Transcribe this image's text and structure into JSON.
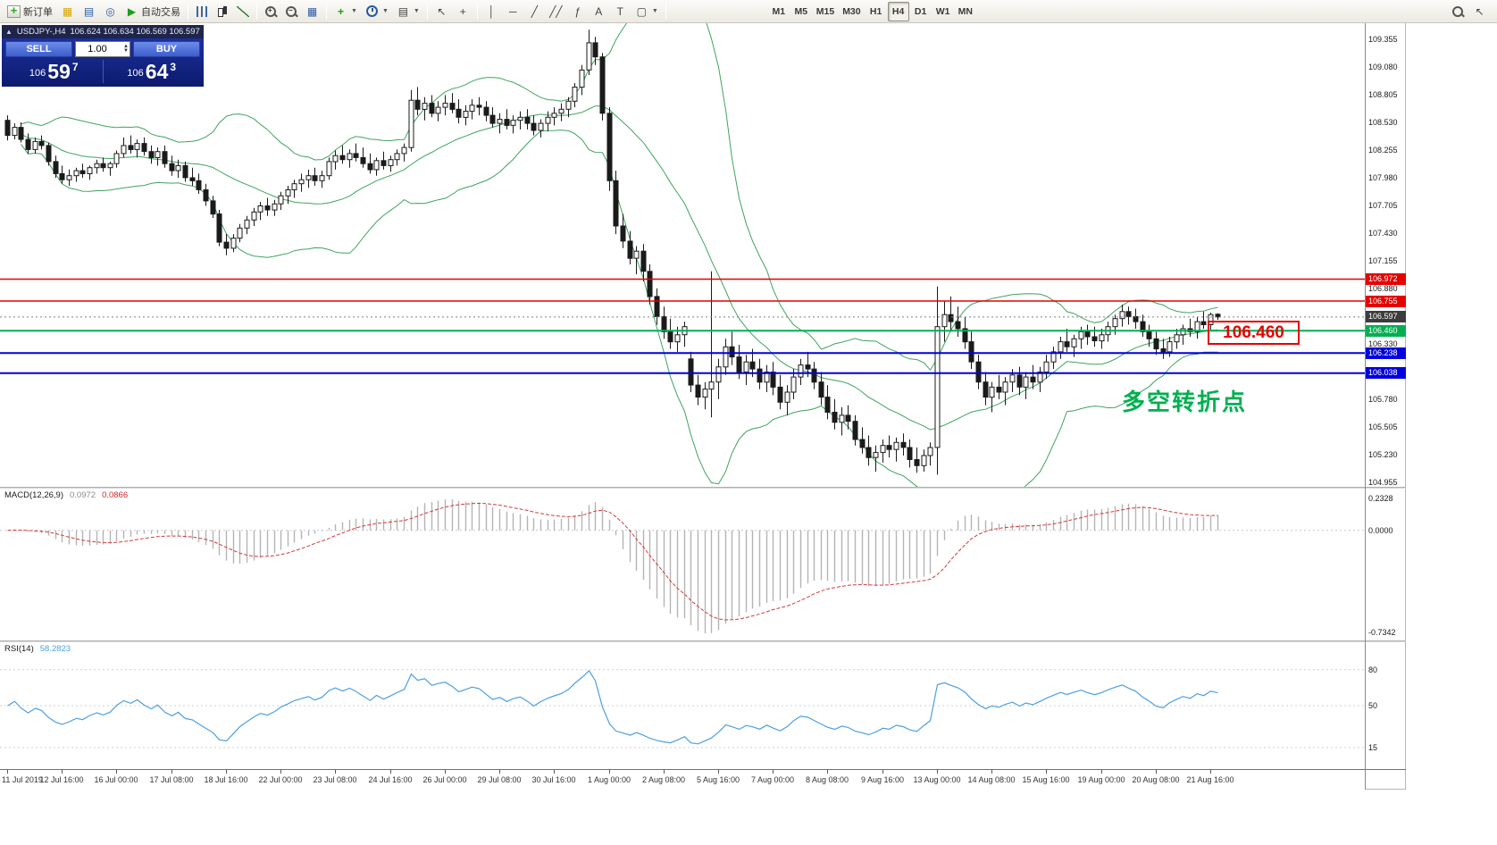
{
  "toolbar": {
    "new_order": "新订单",
    "autotrading": "自动交易",
    "timeframes": [
      "M1",
      "M5",
      "M15",
      "M30",
      "H1",
      "H4",
      "D1",
      "W1",
      "MN"
    ],
    "active_timeframe": "H4"
  },
  "chart": {
    "title_symbol": "USDJPY-,H4",
    "title_ohlc": "106.624 106.634 106.569 106.597",
    "trade_panel": {
      "sell_label": "SELL",
      "buy_label": "BUY",
      "volume": "1.00",
      "sell_price": {
        "prefix": "106",
        "big": "59",
        "sup": "7"
      },
      "buy_price": {
        "prefix": "106",
        "big": "64",
        "sup": "3"
      }
    },
    "price_axis": [
      "109.355",
      "109.080",
      "108.805",
      "108.530",
      "108.255",
      "107.980",
      "107.705",
      "107.430",
      "107.155",
      "106.880",
      "106.605",
      "106.330",
      "106.055",
      "105.780",
      "105.505",
      "105.230",
      "104.955"
    ],
    "current_price": "106.597",
    "current_tag_color": "#3c3c3c",
    "levels": [
      {
        "price": 106.972,
        "label": "106.972",
        "color": "#e60000",
        "width": 1.5
      },
      {
        "price": 106.755,
        "label": "106.755",
        "color": "#e60000",
        "width": 1.5
      },
      {
        "price": 106.46,
        "label": "106.460",
        "color": "#00b050",
        "width": 2
      },
      {
        "price": 106.238,
        "label": "106.238",
        "color": "#0000e0",
        "width": 2
      },
      {
        "price": 106.038,
        "label": "106.038",
        "color": "#0000e0",
        "width": 2
      }
    ],
    "annotations": {
      "price_box": "106.460",
      "note": "多空转折点"
    },
    "time_axis": [
      "11 Jul 2019",
      "12 Jul 16:00",
      "16 Jul 00:00",
      "17 Jul 08:00",
      "18 Jul 16:00",
      "22 Jul 00:00",
      "23 Jul 08:00",
      "24 Jul 16:00",
      "26 Jul 00:00",
      "29 Jul 08:00",
      "30 Jul 16:00",
      "1 Aug 00:00",
      "2 Aug 08:00",
      "5 Aug 16:00",
      "7 Aug 00:00",
      "8 Aug 08:00",
      "9 Aug 16:00",
      "13 Aug 00:00",
      "14 Aug 08:00",
      "15 Aug 16:00",
      "19 Aug 00:00",
      "20 Aug 08:00",
      "21 Aug 16:00"
    ]
  },
  "macd": {
    "label": "MACD(12,26,9)",
    "value_main": "0.0972",
    "value_signal": "0.0866",
    "axis": [
      "0.2328",
      "0.0000",
      "-0.7342"
    ],
    "params": [
      12,
      26,
      9
    ]
  },
  "rsi": {
    "label": "RSI(14)",
    "value": "58.2823",
    "axis": [
      "80",
      "50",
      "15"
    ],
    "levels": [
      80,
      50,
      15
    ],
    "period": 14
  },
  "chart_data": {
    "type": "candlestick",
    "symbol": "USDJPY-",
    "timeframe": "H4",
    "bollinger": {
      "period": 20,
      "deviation": 2
    },
    "colors": {
      "bull": "#ffffff",
      "bear": "#1a1a1a",
      "bollinger": "#3fa45f",
      "macd_hist": "#b4b4b4",
      "macd_signal": "#d23a3a",
      "rsi": "#4d9fe0",
      "level_red": "#e60000",
      "level_green": "#00b050",
      "level_blue": "#0000e0"
    },
    "candles": [
      [
        108.55,
        108.6,
        108.35,
        108.4
      ],
      [
        108.4,
        108.52,
        108.36,
        108.48
      ],
      [
        108.48,
        108.53,
        108.33,
        108.36
      ],
      [
        108.36,
        108.42,
        108.22,
        108.26
      ],
      [
        108.26,
        108.38,
        108.22,
        108.34
      ],
      [
        108.34,
        108.4,
        108.26,
        108.3
      ],
      [
        108.3,
        108.33,
        108.1,
        108.14
      ],
      [
        108.14,
        108.2,
        107.98,
        108.02
      ],
      [
        108.02,
        108.1,
        107.92,
        107.96
      ],
      [
        107.96,
        108.06,
        107.9,
        108.0
      ],
      [
        108.0,
        108.08,
        107.94,
        108.05
      ],
      [
        108.05,
        108.12,
        107.98,
        108.02
      ],
      [
        108.02,
        108.1,
        107.96,
        108.08
      ],
      [
        108.08,
        108.16,
        108.02,
        108.12
      ],
      [
        108.12,
        108.18,
        108.04,
        108.08
      ],
      [
        108.08,
        108.14,
        108.0,
        108.12
      ],
      [
        108.12,
        108.25,
        108.08,
        108.22
      ],
      [
        108.22,
        108.38,
        108.18,
        108.3
      ],
      [
        108.3,
        108.4,
        108.22,
        108.26
      ],
      [
        108.26,
        108.36,
        108.18,
        108.32
      ],
      [
        108.32,
        108.38,
        108.2,
        108.24
      ],
      [
        108.24,
        108.3,
        108.12,
        108.18
      ],
      [
        108.18,
        108.28,
        108.1,
        108.24
      ],
      [
        108.24,
        108.3,
        108.08,
        108.12
      ],
      [
        108.12,
        108.2,
        108.0,
        108.05
      ],
      [
        108.05,
        108.16,
        107.98,
        108.1
      ],
      [
        108.1,
        108.14,
        107.94,
        107.98
      ],
      [
        107.98,
        108.08,
        107.9,
        107.95
      ],
      [
        107.95,
        108.02,
        107.82,
        107.86
      ],
      [
        107.86,
        107.92,
        107.7,
        107.75
      ],
      [
        107.75,
        107.8,
        107.58,
        107.62
      ],
      [
        107.62,
        107.66,
        107.3,
        107.34
      ],
      [
        107.34,
        107.42,
        107.21,
        107.28
      ],
      [
        107.28,
        107.42,
        107.24,
        107.38
      ],
      [
        107.38,
        107.52,
        107.34,
        107.48
      ],
      [
        107.48,
        107.6,
        107.42,
        107.56
      ],
      [
        107.56,
        107.68,
        107.5,
        107.64
      ],
      [
        107.64,
        107.74,
        107.56,
        107.7
      ],
      [
        107.7,
        107.78,
        107.6,
        107.66
      ],
      [
        107.66,
        107.76,
        107.6,
        107.72
      ],
      [
        107.72,
        107.84,
        107.66,
        107.8
      ],
      [
        107.8,
        107.9,
        107.72,
        107.86
      ],
      [
        107.86,
        107.96,
        107.78,
        107.92
      ],
      [
        107.92,
        108.02,
        107.84,
        107.96
      ],
      [
        107.96,
        108.06,
        107.88,
        108.0
      ],
      [
        108.0,
        108.08,
        107.9,
        107.95
      ],
      [
        107.95,
        108.05,
        107.88,
        108.0
      ],
      [
        108.0,
        108.18,
        107.96,
        108.14
      ],
      [
        108.14,
        108.25,
        108.06,
        108.2
      ],
      [
        108.2,
        108.3,
        108.12,
        108.16
      ],
      [
        108.16,
        108.26,
        108.08,
        108.22
      ],
      [
        108.22,
        108.32,
        108.14,
        108.18
      ],
      [
        108.18,
        108.28,
        108.08,
        108.12
      ],
      [
        108.12,
        108.22,
        108.02,
        108.06
      ],
      [
        108.06,
        108.18,
        108.0,
        108.15
      ],
      [
        108.15,
        108.24,
        108.06,
        108.1
      ],
      [
        108.1,
        108.2,
        108.04,
        108.16
      ],
      [
        108.16,
        108.26,
        108.1,
        108.22
      ],
      [
        108.22,
        108.32,
        108.14,
        108.28
      ],
      [
        108.28,
        108.85,
        108.24,
        108.75
      ],
      [
        108.75,
        108.88,
        108.6,
        108.66
      ],
      [
        108.66,
        108.78,
        108.55,
        108.72
      ],
      [
        108.72,
        108.8,
        108.58,
        108.62
      ],
      [
        108.62,
        108.74,
        108.54,
        108.68
      ],
      [
        108.68,
        108.8,
        108.6,
        108.72
      ],
      [
        108.72,
        108.82,
        108.62,
        108.66
      ],
      [
        108.66,
        108.76,
        108.52,
        108.58
      ],
      [
        108.58,
        108.7,
        108.5,
        108.64
      ],
      [
        108.64,
        108.76,
        108.56,
        108.7
      ],
      [
        108.7,
        108.78,
        108.6,
        108.68
      ],
      [
        108.68,
        108.74,
        108.54,
        108.6
      ],
      [
        108.6,
        108.68,
        108.48,
        108.52
      ],
      [
        108.52,
        108.62,
        108.42,
        108.56
      ],
      [
        108.56,
        108.66,
        108.46,
        108.5
      ],
      [
        108.5,
        108.6,
        108.42,
        108.55
      ],
      [
        108.55,
        108.64,
        108.46,
        108.58
      ],
      [
        108.58,
        108.66,
        108.46,
        108.52
      ],
      [
        108.52,
        108.6,
        108.4,
        108.45
      ],
      [
        108.45,
        108.56,
        108.38,
        108.52
      ],
      [
        108.52,
        108.64,
        108.44,
        108.58
      ],
      [
        108.58,
        108.68,
        108.5,
        108.62
      ],
      [
        108.62,
        108.72,
        108.54,
        108.66
      ],
      [
        108.66,
        108.78,
        108.58,
        108.74
      ],
      [
        108.74,
        108.92,
        108.68,
        108.88
      ],
      [
        108.88,
        109.1,
        108.8,
        109.05
      ],
      [
        109.05,
        109.45,
        109.0,
        109.32
      ],
      [
        109.32,
        109.38,
        109.1,
        109.18
      ],
      [
        109.18,
        109.22,
        108.55,
        108.62
      ],
      [
        108.62,
        108.68,
        107.85,
        107.95
      ],
      [
        107.95,
        108.05,
        107.42,
        107.5
      ],
      [
        107.5,
        107.62,
        107.28,
        107.35
      ],
      [
        107.35,
        107.45,
        107.12,
        107.18
      ],
      [
        107.18,
        107.3,
        107.02,
        107.25
      ],
      [
        107.25,
        107.32,
        106.95,
        107.05
      ],
      [
        107.05,
        107.12,
        106.72,
        106.8
      ],
      [
        106.8,
        106.88,
        106.52,
        106.6
      ],
      [
        106.6,
        106.7,
        106.38,
        106.45
      ],
      [
        106.45,
        106.58,
        106.28,
        106.35
      ],
      [
        106.35,
        106.5,
        106.25,
        106.42
      ],
      [
        106.42,
        106.55,
        106.3,
        106.5
      ],
      [
        106.18,
        106.25,
        105.85,
        105.92
      ],
      [
        105.92,
        106.02,
        105.72,
        105.8
      ],
      [
        105.8,
        105.95,
        105.68,
        105.88
      ],
      [
        105.88,
        107.05,
        105.6,
        105.95
      ],
      [
        105.95,
        106.18,
        105.78,
        106.1
      ],
      [
        106.1,
        106.38,
        106.02,
        106.3
      ],
      [
        106.3,
        106.45,
        106.12,
        106.2
      ],
      [
        106.2,
        106.32,
        105.98,
        106.05
      ],
      [
        106.05,
        106.22,
        105.92,
        106.15
      ],
      [
        106.15,
        106.28,
        106.0,
        106.08
      ],
      [
        106.08,
        106.18,
        105.88,
        105.95
      ],
      [
        105.95,
        106.12,
        105.85,
        106.05
      ],
      [
        106.05,
        106.15,
        105.82,
        105.9
      ],
      [
        105.9,
        106.02,
        105.68,
        105.75
      ],
      [
        105.75,
        105.92,
        105.62,
        105.85
      ],
      [
        105.85,
        106.08,
        105.78,
        106.0
      ],
      [
        106.0,
        106.18,
        105.92,
        106.12
      ],
      [
        106.12,
        106.25,
        106.0,
        106.08
      ],
      [
        106.08,
        106.15,
        105.88,
        105.95
      ],
      [
        105.95,
        106.05,
        105.72,
        105.8
      ],
      [
        105.8,
        105.92,
        105.58,
        105.65
      ],
      [
        105.65,
        105.78,
        105.48,
        105.55
      ],
      [
        105.55,
        105.7,
        105.42,
        105.62
      ],
      [
        105.62,
        105.72,
        105.48,
        105.56
      ],
      [
        105.56,
        105.62,
        105.32,
        105.38
      ],
      [
        105.38,
        105.5,
        105.24,
        105.3
      ],
      [
        105.3,
        105.42,
        105.12,
        105.2
      ],
      [
        105.2,
        105.32,
        105.06,
        105.25
      ],
      [
        105.25,
        105.38,
        105.15,
        105.32
      ],
      [
        105.32,
        105.42,
        105.2,
        105.28
      ],
      [
        105.28,
        105.4,
        105.16,
        105.35
      ],
      [
        105.35,
        105.44,
        105.22,
        105.3
      ],
      [
        105.3,
        105.38,
        105.1,
        105.18
      ],
      [
        105.18,
        105.3,
        105.05,
        105.12
      ],
      [
        105.12,
        105.28,
        105.06,
        105.22
      ],
      [
        105.22,
        105.35,
        105.12,
        105.3
      ],
      [
        105.3,
        106.9,
        105.03,
        106.5
      ],
      [
        106.5,
        106.75,
        106.35,
        106.62
      ],
      [
        106.62,
        106.8,
        106.45,
        106.55
      ],
      [
        106.55,
        106.7,
        106.4,
        106.48
      ],
      [
        106.48,
        106.6,
        106.28,
        106.35
      ],
      [
        106.35,
        106.45,
        106.08,
        106.15
      ],
      [
        106.15,
        106.22,
        105.88,
        105.95
      ],
      [
        105.95,
        106.05,
        105.72,
        105.8
      ],
      [
        105.8,
        105.95,
        105.65,
        105.9
      ],
      [
        105.9,
        106.02,
        105.78,
        105.85
      ],
      [
        105.85,
        106.0,
        105.72,
        105.95
      ],
      [
        105.95,
        106.08,
        105.85,
        106.02
      ],
      [
        106.02,
        106.1,
        105.82,
        105.9
      ],
      [
        105.9,
        106.05,
        105.78,
        106.0
      ],
      [
        106.0,
        106.12,
        105.88,
        105.95
      ],
      [
        105.95,
        106.1,
        105.85,
        106.05
      ],
      [
        106.05,
        106.22,
        105.98,
        106.15
      ],
      [
        106.15,
        106.3,
        106.08,
        106.25
      ],
      [
        106.25,
        106.4,
        106.18,
        106.35
      ],
      [
        106.35,
        106.48,
        106.25,
        106.3
      ],
      [
        106.3,
        106.42,
        106.2,
        106.38
      ],
      [
        106.38,
        106.5,
        106.28,
        106.45
      ],
      [
        106.45,
        106.52,
        106.32,
        106.4
      ],
      [
        106.4,
        106.5,
        106.3,
        106.36
      ],
      [
        106.36,
        106.48,
        106.28,
        106.42
      ],
      [
        106.42,
        106.55,
        106.35,
        106.5
      ],
      [
        106.5,
        106.62,
        106.42,
        106.58
      ],
      [
        106.58,
        106.72,
        106.5,
        106.65
      ],
      [
        106.65,
        106.7,
        106.52,
        106.6
      ],
      [
        106.6,
        106.68,
        106.48,
        106.55
      ],
      [
        106.55,
        106.62,
        106.4,
        106.45
      ],
      [
        106.45,
        106.52,
        106.3,
        106.38
      ],
      [
        106.38,
        106.45,
        106.22,
        106.28
      ],
      [
        106.28,
        106.38,
        106.18,
        106.25
      ],
      [
        106.25,
        106.4,
        106.2,
        106.35
      ],
      [
        106.35,
        106.48,
        106.28,
        106.42
      ],
      [
        106.42,
        106.52,
        106.32,
        106.48
      ],
      [
        106.48,
        106.58,
        106.4,
        106.45
      ],
      [
        106.45,
        106.6,
        106.38,
        106.55
      ],
      [
        106.55,
        106.65,
        106.48,
        106.52
      ],
      [
        106.52,
        106.64,
        106.46,
        106.62
      ],
      [
        106.624,
        106.634,
        106.569,
        106.597
      ]
    ]
  }
}
